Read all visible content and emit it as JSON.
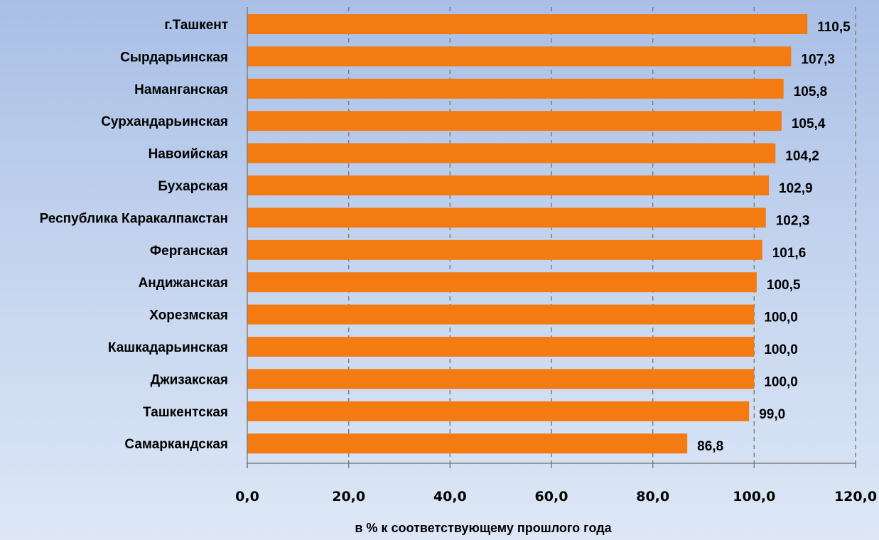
{
  "chart_data": {
    "type": "bar",
    "orientation": "horizontal",
    "title": "",
    "xlabel": "в % к соответствующему  прошлого года",
    "ylabel": "",
    "categories": [
      "г.Ташкент",
      "Сырдарьинская",
      "Наманганская",
      "Сурхандарьинская",
      "Навоийская",
      "Бухарская",
      "Республика Каракалпакстан",
      "Ферганская",
      "Андижанская",
      "Хорезмская",
      "Кашкадарьинская",
      "Джизакская",
      "Ташкентская",
      "Самаркандская"
    ],
    "values": [
      110.5,
      107.3,
      105.8,
      105.4,
      104.2,
      102.9,
      102.3,
      101.6,
      100.5,
      100.0,
      100.0,
      100.0,
      99.0,
      86.8
    ],
    "value_labels": [
      "110,5",
      "107,3",
      "105,8",
      "105,4",
      "104,2",
      "102,9",
      "102,3",
      "101,6",
      "100,5",
      "100,0",
      "100,0",
      "100,0",
      "99,0",
      "86,8"
    ],
    "xlim": [
      0,
      120
    ],
    "x_ticks": [
      0,
      20,
      40,
      60,
      80,
      100,
      120
    ],
    "x_tick_labels": [
      "0,0",
      "20,0",
      "40,0",
      "60,0",
      "80,0",
      "100,0",
      "120,0"
    ],
    "grid": "vertical dashed",
    "legend": "none",
    "colors": {
      "bar": "#f47a12",
      "grid": "#7f7f7f",
      "axis": "#808080"
    }
  }
}
